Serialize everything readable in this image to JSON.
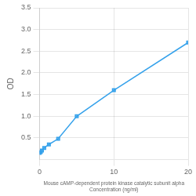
{
  "chart_data": {
    "type": "line",
    "x": [
      0,
      0.156,
      0.313,
      0.625,
      1.25,
      2.5,
      5,
      10,
      20
    ],
    "values": [
      0.158,
      0.175,
      0.21,
      0.27,
      0.35,
      0.48,
      1.0,
      1.6,
      2.7
    ],
    "xlabel": "Mouse cAMP-dependent protein kinase catalytic subunit alpha\nConcentration (ng/ml)",
    "ylabel": "OD",
    "xlim": [
      0,
      20
    ],
    "ylim": [
      0,
      3.5
    ],
    "xticks": [
      0,
      10,
      20
    ],
    "yticks": [
      0.5,
      {
        "value": 1.0,
        "label": "1.0"
      },
      1.5,
      {
        "value": 2.0,
        "label": "2.0"
      },
      2.5,
      {
        "value": 3.0,
        "label": "3.0"
      },
      3.5
    ],
    "marker": "square",
    "grid": true
  }
}
